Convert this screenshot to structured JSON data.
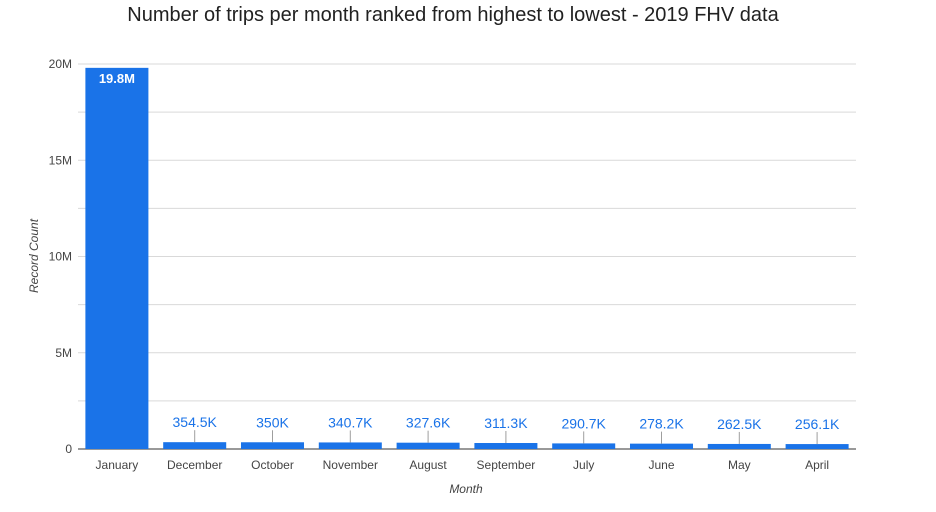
{
  "chart_data": {
    "type": "bar",
    "title": "Number of trips per month ranked from highest to lowest - 2019 FHV data",
    "xlabel": "Month",
    "ylabel": "Record Count",
    "categories": [
      "January",
      "December",
      "October",
      "November",
      "August",
      "September",
      "July",
      "June",
      "May",
      "April"
    ],
    "values": [
      19800000,
      354500,
      350000,
      340700,
      327600,
      311300,
      290700,
      278200,
      262500,
      256100
    ],
    "data_labels": [
      "19.8M",
      "354.5K",
      "350K",
      "340.7K",
      "327.6K",
      "311.3K",
      "290.7K",
      "278.2K",
      "262.5K",
      "256.1K"
    ],
    "ylim": [
      0,
      20000000
    ],
    "yticks": [
      0,
      5000000,
      10000000,
      15000000,
      20000000
    ],
    "ytick_labels": [
      "0",
      "5M",
      "10M",
      "15M",
      "20M"
    ],
    "grid": true,
    "legend": "none",
    "colors": {
      "bar": "#1a73e8",
      "label": "#1a73e8",
      "grid": "#d9d9d9",
      "axis": "#333333"
    }
  }
}
